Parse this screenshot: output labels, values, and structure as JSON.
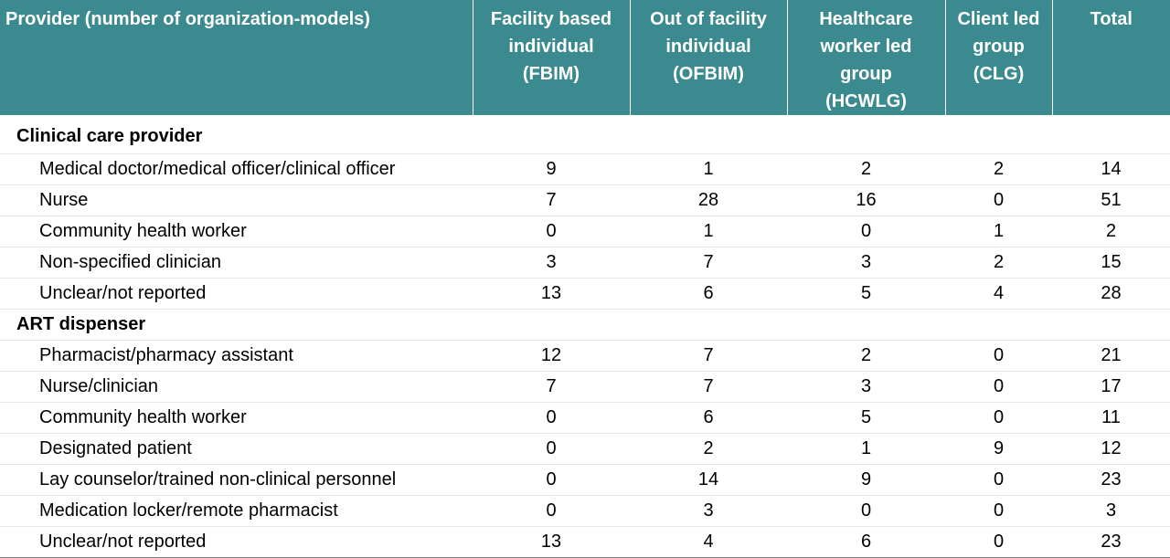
{
  "headers": [
    "Provider (number of organization-models)",
    "Facility based individual (FBIM)",
    "Out of facility individual (OFBIM)",
    "Healthcare worker led group (HCWLG)",
    "Client led group (CLG)",
    "Total"
  ],
  "header_lines": [
    [
      "Provider (number of organization-models)"
    ],
    [
      "Facility based",
      "individual",
      "(FBIM)"
    ],
    [
      "Out of facility",
      "individual",
      "(OFBIM)"
    ],
    [
      "Healthcare",
      "worker led",
      "group",
      "(HCWLG)"
    ],
    [
      "Client led",
      "group",
      "(CLG)"
    ],
    [
      "Total"
    ]
  ],
  "sections": [
    {
      "title": "Clinical care provider",
      "rows": [
        {
          "label": "Medical doctor/medical officer/clinical officer",
          "values": [
            "9",
            "1",
            "2",
            "2",
            "14"
          ]
        },
        {
          "label": "Nurse",
          "values": [
            "7",
            "28",
            "16",
            "0",
            "51"
          ]
        },
        {
          "label": "Community health worker",
          "values": [
            "0",
            "1",
            "0",
            "1",
            "2"
          ]
        },
        {
          "label": "Non-specified clinician",
          "values": [
            "3",
            "7",
            "3",
            "2",
            "15"
          ]
        },
        {
          "label": "Unclear/not reported",
          "values": [
            "13",
            "6",
            "5",
            "4",
            "28"
          ]
        }
      ]
    },
    {
      "title": "ART dispenser",
      "rows": [
        {
          "label": "Pharmacist/pharmacy assistant",
          "values": [
            "12",
            "7",
            "2",
            "0",
            "21"
          ]
        },
        {
          "label": "Nurse/clinician",
          "values": [
            "7",
            "7",
            "3",
            "0",
            "17"
          ]
        },
        {
          "label": "Community health worker",
          "values": [
            "0",
            "6",
            "5",
            "0",
            "11"
          ]
        },
        {
          "label": "Designated patient",
          "values": [
            "0",
            "2",
            "1",
            "9",
            "12"
          ]
        },
        {
          "label": "Lay counselor/trained non-clinical personnel",
          "values": [
            "0",
            "14",
            "9",
            "0",
            "23"
          ]
        },
        {
          "label": "Medication locker/remote pharmacist",
          "values": [
            "0",
            "3",
            "0",
            "0",
            "3"
          ]
        },
        {
          "label": "Unclear/not reported",
          "values": [
            "13",
            "4",
            "6",
            "0",
            "23"
          ]
        }
      ]
    }
  ],
  "colors": {
    "header_bg": "#3a8a8f",
    "header_text": "#ffffff"
  }
}
